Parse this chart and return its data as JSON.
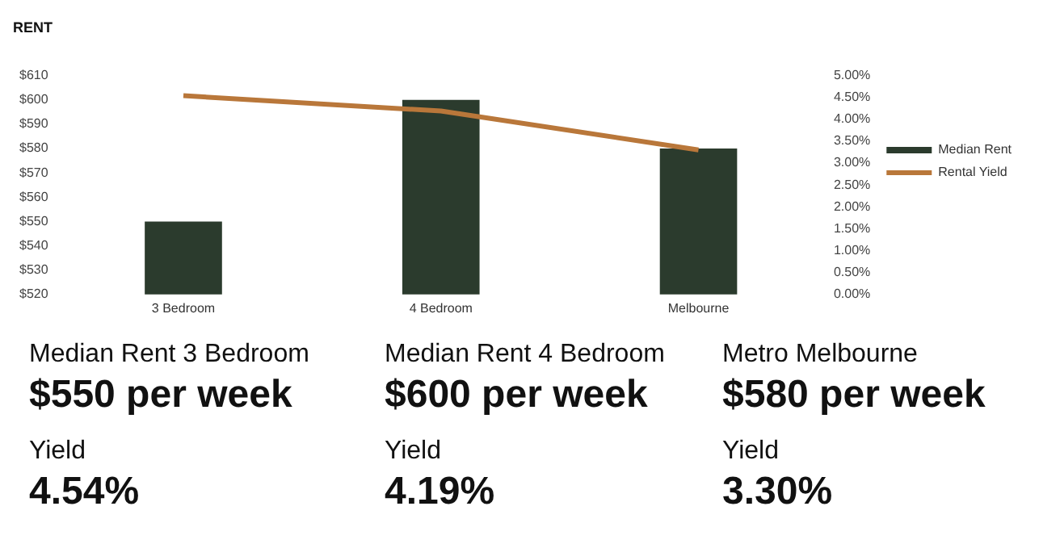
{
  "chart_data": {
    "type": "bar",
    "title": "RENT",
    "categories": [
      "3 Bedroom",
      "4 Bedroom",
      "Melbourne"
    ],
    "series": [
      {
        "name": "Median Rent",
        "color": "#2b3b2d",
        "values": [
          550,
          600,
          580
        ]
      },
      {
        "name": "Rental Yield",
        "type": "line",
        "axis": "y2",
        "color": "#b9773a",
        "values": [
          4.54,
          4.19,
          3.3
        ]
      }
    ],
    "ylim": [
      520,
      610
    ],
    "yticks": [
      {
        "value": 520,
        "label": "$520"
      },
      {
        "value": 530,
        "label": "$530"
      },
      {
        "value": 540,
        "label": "$540"
      },
      {
        "value": 550,
        "label": "$550"
      },
      {
        "value": 560,
        "label": "$560"
      },
      {
        "value": 570,
        "label": "$570"
      },
      {
        "value": 580,
        "label": "$580"
      },
      {
        "value": 590,
        "label": "$590"
      },
      {
        "value": 600,
        "label": "$600"
      },
      {
        "value": 610,
        "label": "$610"
      }
    ],
    "y2lim": [
      0,
      5
    ],
    "y2ticks": [
      {
        "value": 0,
        "label": "0.00%"
      },
      {
        "value": 0.5,
        "label": "0.50%"
      },
      {
        "value": 1,
        "label": "1.00%"
      },
      {
        "value": 1.5,
        "label": "1.50%"
      },
      {
        "value": 2,
        "label": "2.00%"
      },
      {
        "value": 2.5,
        "label": "2.50%"
      },
      {
        "value": 3,
        "label": "3.00%"
      },
      {
        "value": 3.5,
        "label": "3.50%"
      },
      {
        "value": 4,
        "label": "4.00%"
      },
      {
        "value": 4.5,
        "label": "4.50%"
      },
      {
        "value": 5,
        "label": "5.00%"
      }
    ],
    "grid": false,
    "legend": "right",
    "marker": "none",
    "annotations": [
      "Median Rent 3 Bedroom",
      "Median Rent 4 Bedroom",
      "Metro Melbourne",
      "$550 per week",
      "$600 per week",
      "$580 per week",
      "Yield",
      "Yield",
      "Yield",
      "4.54%",
      "4.19%",
      "3.30%"
    ]
  }
}
